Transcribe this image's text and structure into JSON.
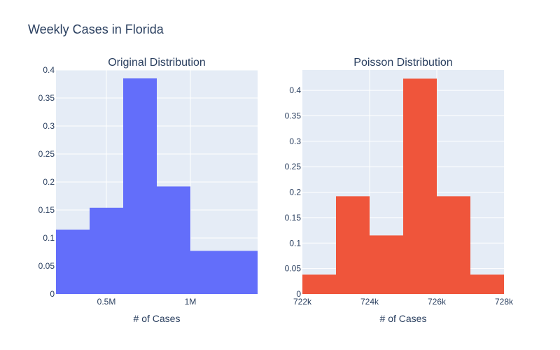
{
  "figure": {
    "title": "Weekly Cases in Florida"
  },
  "chart_data": [
    {
      "type": "bar",
      "title": "Original Distribution",
      "xlabel": "# of Cases",
      "ylabel": "",
      "xlim": [
        200000,
        1400000
      ],
      "ylim": [
        0,
        0.4
      ],
      "x_ticks": [
        {
          "value": 500000,
          "label": "0.5M"
        },
        {
          "value": 1000000,
          "label": "1M"
        }
      ],
      "y_ticks": [
        {
          "value": 0,
          "label": "0"
        },
        {
          "value": 0.05,
          "label": "0.05"
        },
        {
          "value": 0.1,
          "label": "0.1"
        },
        {
          "value": 0.15,
          "label": "0.15"
        },
        {
          "value": 0.2,
          "label": "0.2"
        },
        {
          "value": 0.25,
          "label": "0.25"
        },
        {
          "value": 0.3,
          "label": "0.3"
        },
        {
          "value": 0.35,
          "label": "0.35"
        },
        {
          "value": 0.4,
          "label": "0.4"
        }
      ],
      "bins": [
        {
          "x0": 200000,
          "x1": 400000,
          "value": 0.115
        },
        {
          "x0": 400000,
          "x1": 600000,
          "value": 0.154
        },
        {
          "x0": 600000,
          "x1": 800000,
          "value": 0.385
        },
        {
          "x0": 800000,
          "x1": 1000000,
          "value": 0.192
        },
        {
          "x0": 1000000,
          "x1": 1200000,
          "value": 0.077
        },
        {
          "x0": 1200000,
          "x1": 1400000,
          "value": 0.077
        }
      ],
      "color": "#636efa",
      "grid": true
    },
    {
      "type": "bar",
      "title": "Poisson Distribution",
      "xlabel": "# of Cases",
      "ylabel": "",
      "xlim": [
        722000,
        728000
      ],
      "ylim": [
        0,
        0.44
      ],
      "x_ticks": [
        {
          "value": 722000,
          "label": "722k"
        },
        {
          "value": 724000,
          "label": "724k"
        },
        {
          "value": 726000,
          "label": "726k"
        },
        {
          "value": 728000,
          "label": "728k"
        }
      ],
      "y_ticks": [
        {
          "value": 0,
          "label": "0"
        },
        {
          "value": 0.05,
          "label": "0.05"
        },
        {
          "value": 0.1,
          "label": "0.1"
        },
        {
          "value": 0.15,
          "label": "0.15"
        },
        {
          "value": 0.2,
          "label": "0.2"
        },
        {
          "value": 0.25,
          "label": "0.25"
        },
        {
          "value": 0.3,
          "label": "0.3"
        },
        {
          "value": 0.35,
          "label": "0.35"
        },
        {
          "value": 0.4,
          "label": "0.4"
        }
      ],
      "bins": [
        {
          "x0": 722000,
          "x1": 723000,
          "value": 0.038
        },
        {
          "x0": 723000,
          "x1": 724000,
          "value": 0.192
        },
        {
          "x0": 724000,
          "x1": 725000,
          "value": 0.115
        },
        {
          "x0": 725000,
          "x1": 726000,
          "value": 0.423
        },
        {
          "x0": 726000,
          "x1": 727000,
          "value": 0.192
        },
        {
          "x0": 727000,
          "x1": 728000,
          "value": 0.038
        }
      ],
      "color": "#ef553b",
      "grid": true
    }
  ],
  "colors": {
    "plot_background": "#e5ecf6",
    "grid": "#ffffff",
    "text": "#2a3f5f"
  }
}
